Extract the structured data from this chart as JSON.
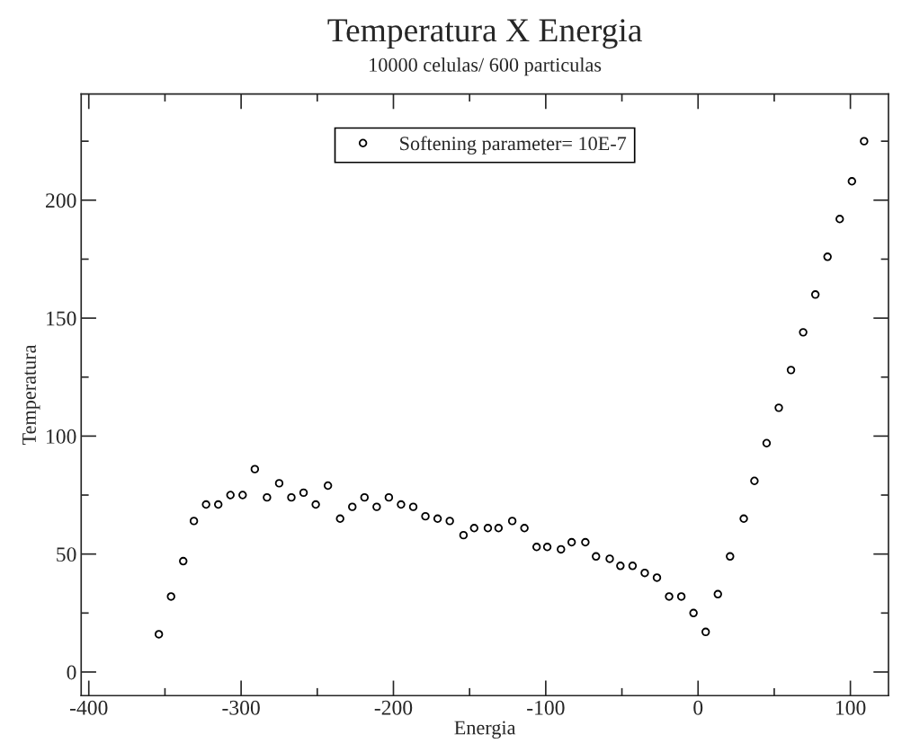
{
  "chart_data": {
    "type": "scatter",
    "title": "Temperatura X Energia",
    "subtitle": "10000 celulas/ 600 particulas",
    "xlabel": "Energia",
    "ylabel": "Temperatura",
    "series": [
      {
        "name": "Softening parameter= 10E-7",
        "color": "#000000",
        "marker": "circle",
        "x": [
          -354,
          -346,
          -338,
          -331,
          -323,
          -315,
          -307,
          -299,
          -291,
          -283,
          -275,
          -267,
          -259,
          -251,
          -243,
          -235,
          -227,
          -219,
          -211,
          -203,
          -195,
          -187,
          -179,
          -171,
          -163,
          -154,
          -147,
          -138,
          -131,
          -122,
          -114,
          -106,
          -99,
          -90,
          -83,
          -74,
          -67,
          -58,
          -51,
          -43,
          -35,
          -27,
          -19,
          -11,
          -3,
          5,
          13,
          21,
          30,
          37,
          45,
          53,
          61,
          69,
          77,
          85,
          93,
          101,
          109
        ],
        "values": [
          16,
          32,
          47,
          64,
          71,
          71,
          75,
          75,
          86,
          74,
          80,
          74,
          76,
          71,
          79,
          65,
          70,
          74,
          70,
          74,
          71,
          70,
          66,
          65,
          64,
          58,
          61,
          61,
          61,
          64,
          61,
          53,
          53,
          52,
          55,
          55,
          49,
          48,
          45,
          45,
          42,
          40,
          32,
          32,
          25,
          17,
          33,
          49,
          65,
          81,
          97,
          112,
          128,
          144,
          160,
          176,
          192,
          208,
          225
        ]
      }
    ],
    "xlim": [
      -405,
      125
    ],
    "ylim": [
      -10,
      245
    ],
    "xticks": [
      -400,
      -300,
      -200,
      -100,
      0,
      100
    ],
    "yticks": [
      0,
      50,
      100,
      150,
      200
    ],
    "grid": false,
    "legend": "top"
  }
}
